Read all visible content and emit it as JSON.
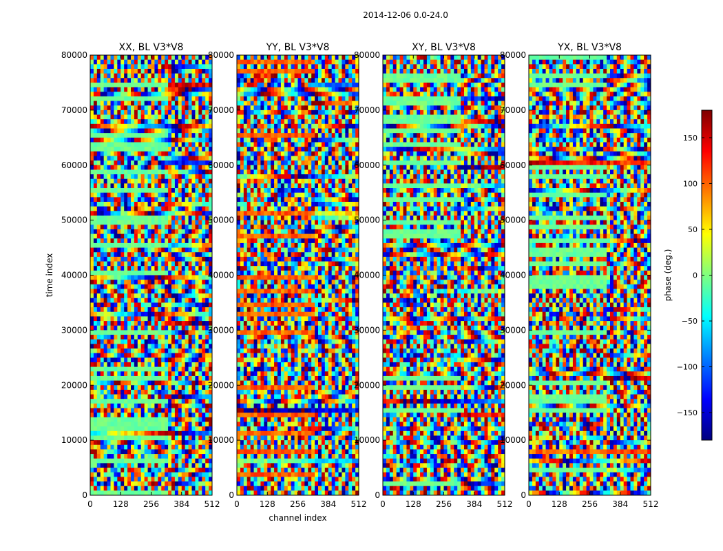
{
  "figure": {
    "suptitle": "2014-12-06 0.0-24.0"
  },
  "chart_data": [
    {
      "type": "heatmap",
      "title": "XX, BL V3*V8",
      "xlabel": "",
      "ylabel": "time index",
      "xlim": [
        0,
        512
      ],
      "ylim": [
        0,
        80000
      ],
      "xticks": [
        0,
        128,
        256,
        384,
        512
      ],
      "yticks": [
        0,
        10000,
        20000,
        30000,
        40000,
        50000,
        60000,
        70000,
        80000
      ],
      "value": "phase (deg.)",
      "value_range": [
        -180,
        180
      ]
    },
    {
      "type": "heatmap",
      "title": "YY, BL V3*V8",
      "xlabel": "channel index",
      "ylabel": "",
      "xlim": [
        0,
        512
      ],
      "ylim": [
        0,
        80000
      ],
      "xticks": [
        0,
        128,
        256,
        384,
        512
      ],
      "yticks": [
        0,
        10000,
        20000,
        30000,
        40000,
        50000,
        60000,
        70000,
        80000
      ],
      "value": "phase (deg.)",
      "value_range": [
        -180,
        180
      ]
    },
    {
      "type": "heatmap",
      "title": "XY, BL V3*V8",
      "xlabel": "",
      "ylabel": "",
      "xlim": [
        0,
        512
      ],
      "ylim": [
        0,
        80000
      ],
      "xticks": [
        0,
        128,
        256,
        384,
        512
      ],
      "yticks": [
        0,
        10000,
        20000,
        30000,
        40000,
        50000,
        60000,
        70000,
        80000
      ],
      "value": "phase (deg.)",
      "value_range": [
        -180,
        180
      ]
    },
    {
      "type": "heatmap",
      "title": "YX, BL V3*V8",
      "xlabel": "",
      "ylabel": "",
      "xlim": [
        0,
        512
      ],
      "ylim": [
        0,
        80000
      ],
      "xticks": [
        0,
        128,
        256,
        384,
        512
      ],
      "yticks": [
        0,
        10000,
        20000,
        30000,
        40000,
        50000,
        60000,
        70000,
        80000
      ],
      "value": "phase (deg.)",
      "value_range": [
        -180,
        180
      ]
    }
  ],
  "colorbar": {
    "label": "phase (deg.)",
    "range": [
      -180,
      180
    ],
    "ticks": [
      150,
      100,
      50,
      0,
      -50,
      -100,
      -150
    ],
    "tick_labels": [
      "150",
      "100",
      "50",
      "0",
      "−50",
      "−100",
      "−150"
    ],
    "colormap": "jet",
    "colors": [
      "#00007f",
      "#0000ff",
      "#007fff",
      "#00ffff",
      "#7fff7f",
      "#ffff00",
      "#ff7f00",
      "#ff0000",
      "#7f0000"
    ]
  },
  "colors": {
    "background": "#ffffff",
    "axes": "#000000"
  }
}
